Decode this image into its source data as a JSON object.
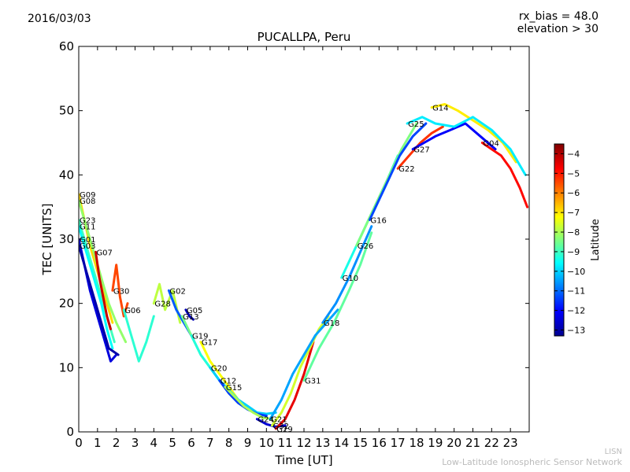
{
  "header": {
    "date": "2016/03/03",
    "bias": "rx_bias = 48.0",
    "elevation": "elevation > 30"
  },
  "footer": {
    "line1": "LISN",
    "line2": "Low-Latitude Ionospheric Sensor Network"
  },
  "chart_data": {
    "type": "line",
    "title": "PUCALLPA, Peru",
    "xlabel": "Time [UT]",
    "ylabel": "TEC [UNITS]",
    "xlim": [
      0,
      24
    ],
    "ylim": [
      0,
      60
    ],
    "xticks": [
      0,
      1,
      2,
      3,
      4,
      5,
      6,
      7,
      8,
      9,
      10,
      11,
      12,
      13,
      14,
      15,
      16,
      17,
      18,
      19,
      20,
      21,
      22,
      23
    ],
    "yticks": [
      0,
      10,
      20,
      30,
      40,
      50,
      60
    ],
    "grid": false,
    "colorbar": {
      "label": "Latitude",
      "range": [
        -13.3,
        -3.5
      ],
      "ticks": [
        -4,
        -5,
        -6,
        -7,
        -8,
        -9,
        -10,
        -11,
        -12,
        -13
      ],
      "colormap": "jet"
    },
    "series": [
      {
        "name": "G09",
        "lat": -6.8,
        "x": [
          0,
          0.3,
          0.6,
          1.0,
          1.4,
          1.8
        ],
        "y": [
          37,
          33,
          29,
          25,
          21,
          17
        ]
      },
      {
        "name": "G08",
        "lat": -8.2,
        "x": [
          0,
          0.4,
          0.8,
          1.2,
          1.6,
          2.0,
          2.5
        ],
        "y": [
          36,
          32,
          28,
          24,
          20,
          17,
          14
        ]
      },
      {
        "name": "G23",
        "lat": -9.0,
        "x": [
          0,
          0.4,
          0.8,
          1.2,
          1.6,
          1.9
        ],
        "y": [
          33,
          29,
          25,
          21,
          17,
          14
        ]
      },
      {
        "name": "G11",
        "lat": -9.6,
        "x": [
          0,
          0.4,
          0.8,
          1.2,
          1.5,
          1.8
        ],
        "y": [
          32,
          28,
          24,
          20,
          16,
          13
        ]
      },
      {
        "name": "G01",
        "lat": -12.4,
        "x": [
          0,
          0.3,
          0.6,
          1.0,
          1.4,
          1.7,
          2.0
        ],
        "y": [
          30,
          26,
          22,
          18,
          14,
          11,
          12
        ]
      },
      {
        "name": "G03",
        "lat": -12.9,
        "x": [
          0,
          0.4,
          0.8,
          1.2,
          1.6,
          2.1
        ],
        "y": [
          29,
          25,
          21,
          17,
          13,
          12
        ]
      },
      {
        "name": "G07",
        "lat": -4.2,
        "x": [
          0.9,
          1.1,
          1.3,
          1.5,
          1.7
        ],
        "y": [
          28,
          24,
          21,
          18,
          16
        ]
      },
      {
        "name": "G30",
        "lat": -5.4,
        "x": [
          1.8,
          2.0,
          2.2,
          2.4,
          2.6
        ],
        "y": [
          22,
          26,
          21,
          18,
          20
        ]
      },
      {
        "name": "G06",
        "lat": -9.2,
        "x": [
          2.4,
          2.8,
          3.2,
          3.6,
          4.0
        ],
        "y": [
          19,
          15,
          11,
          14,
          18
        ]
      },
      {
        "name": "G28",
        "lat": -7.8,
        "x": [
          4.0,
          4.3,
          4.6,
          5.0,
          5.4
        ],
        "y": [
          20,
          23,
          19,
          22,
          17
        ]
      },
      {
        "name": "G02",
        "lat": -11.2,
        "x": [
          4.8,
          5.2,
          5.6,
          6.0
        ],
        "y": [
          22,
          19,
          17,
          15
        ]
      },
      {
        "name": "G05",
        "lat": -12.8,
        "x": [
          5.7,
          5.9,
          6.1
        ],
        "y": [
          19,
          18,
          17.5
        ]
      },
      {
        "name": "G17",
        "lat": -7.2,
        "x": [
          6.5,
          7.0,
          7.5,
          8.0,
          8.5,
          9.0
        ],
        "y": [
          14,
          11,
          9,
          7,
          5,
          4
        ]
      },
      {
        "name": "G13",
        "lat": -8.5,
        "x": [
          5.5,
          6.0,
          6.5,
          7.0,
          7.5,
          8.0,
          8.5,
          9.0,
          9.5
        ],
        "y": [
          18,
          15,
          12,
          10,
          8,
          6,
          4.5,
          3.5,
          3
        ]
      },
      {
        "name": "G19",
        "lat": -9.3,
        "x": [
          6.0,
          6.5,
          7.0,
          7.5,
          8.0,
          8.5,
          9.0,
          9.5,
          10.0
        ],
        "y": [
          15,
          12,
          10,
          8,
          6.5,
          5,
          4,
          3,
          2.5
        ]
      },
      {
        "name": "G20",
        "lat": -10.1,
        "x": [
          7.0,
          7.5,
          8.0,
          8.5,
          9.0,
          9.5,
          10.0,
          10.5
        ],
        "y": [
          10,
          8,
          6.5,
          5,
          4,
          3,
          2.8,
          3
        ]
      },
      {
        "name": "G12",
        "lat": -11.5,
        "x": [
          7.5,
          8.0,
          8.5,
          9.0,
          9.5,
          10.0
        ],
        "y": [
          8,
          6,
          4.5,
          3.5,
          2.8,
          2.5
        ]
      },
      {
        "name": "G15",
        "lat": -8.0,
        "x": [
          7.8,
          8.3,
          8.8,
          9.3,
          9.8,
          10.3
        ],
        "y": [
          7,
          5.5,
          4,
          3,
          2.2,
          2
        ]
      },
      {
        "name": "G24",
        "lat": -12.5,
        "x": [
          9.5,
          10.0,
          10.5,
          11.0
        ],
        "y": [
          2,
          1.2,
          0.8,
          1.0
        ]
      },
      {
        "name": "G29",
        "lat": -4.5,
        "x": [
          10.5,
          11.0,
          11.5,
          12.0,
          12.5
        ],
        "y": [
          0.5,
          2,
          5,
          9,
          14
        ]
      },
      {
        "name": "G32",
        "lat": -7.6,
        "x": [
          10.3,
          10.8,
          11.3,
          11.8,
          12.3,
          12.8,
          13.3
        ],
        "y": [
          1,
          3,
          6,
          10,
          13,
          16,
          18
        ]
      },
      {
        "name": "G21",
        "lat": -10.5,
        "x": [
          10.2,
          10.8,
          11.4,
          12.0,
          12.6,
          13.2,
          13.8
        ],
        "y": [
          2,
          5,
          9,
          12,
          15,
          17,
          19
        ]
      },
      {
        "name": "G31",
        "lat": -8.7,
        "x": [
          12.0,
          12.8,
          13.6,
          14.4,
          15.0,
          15.6
        ],
        "y": [
          8,
          13,
          17,
          22,
          26,
          31
        ]
      },
      {
        "name": "G18",
        "lat": -10.7,
        "x": [
          13.0,
          13.7,
          14.4,
          15.0,
          15.6
        ],
        "y": [
          17,
          20,
          24,
          28,
          32
        ]
      },
      {
        "name": "G10",
        "lat": -9.4,
        "x": [
          14.0,
          14.8,
          15.6,
          16.4,
          17.0
        ],
        "y": [
          24,
          29,
          34,
          39,
          43
        ]
      },
      {
        "name": "G26",
        "lat": -8.4,
        "x": [
          14.8,
          15.6,
          16.4,
          17.2,
          18.0
        ],
        "y": [
          29,
          34,
          39,
          44,
          48
        ]
      },
      {
        "name": "G16",
        "lat": -11.4,
        "x": [
          15.5,
          16.3,
          17.1,
          17.8,
          18.5
        ],
        "y": [
          33,
          38,
          43,
          46,
          48
        ]
      },
      {
        "name": "G22",
        "lat": -5.2,
        "x": [
          17.0,
          17.6,
          18.2,
          18.8,
          19.4
        ],
        "y": [
          41,
          43,
          45,
          46.5,
          47.5
        ]
      },
      {
        "name": "G27",
        "lat": -12.1,
        "x": [
          17.8,
          18.4,
          19.0,
          19.8,
          20.6,
          21.4,
          22.2
        ],
        "y": [
          44,
          45,
          46,
          47,
          48,
          46,
          44
        ]
      },
      {
        "name": "G14",
        "lat": -7.0,
        "x": [
          18.8,
          19.5,
          20.2,
          21.0,
          21.8,
          22.6,
          23.3
        ],
        "y": [
          50.5,
          51,
          50,
          48.5,
          47,
          45,
          42
        ]
      },
      {
        "name": "G25",
        "lat": -9.8,
        "x": [
          17.5,
          18.3,
          19.0,
          20.0,
          21.0,
          22.0,
          23.0,
          23.8
        ],
        "y": [
          48,
          49,
          48,
          47.5,
          49,
          47,
          44,
          40
        ]
      },
      {
        "name": "G04",
        "lat": -4.8,
        "x": [
          21.5,
          22.0,
          22.5,
          23.0,
          23.5,
          23.9
        ],
        "y": [
          45,
          44,
          43,
          41,
          38,
          35
        ]
      }
    ]
  }
}
